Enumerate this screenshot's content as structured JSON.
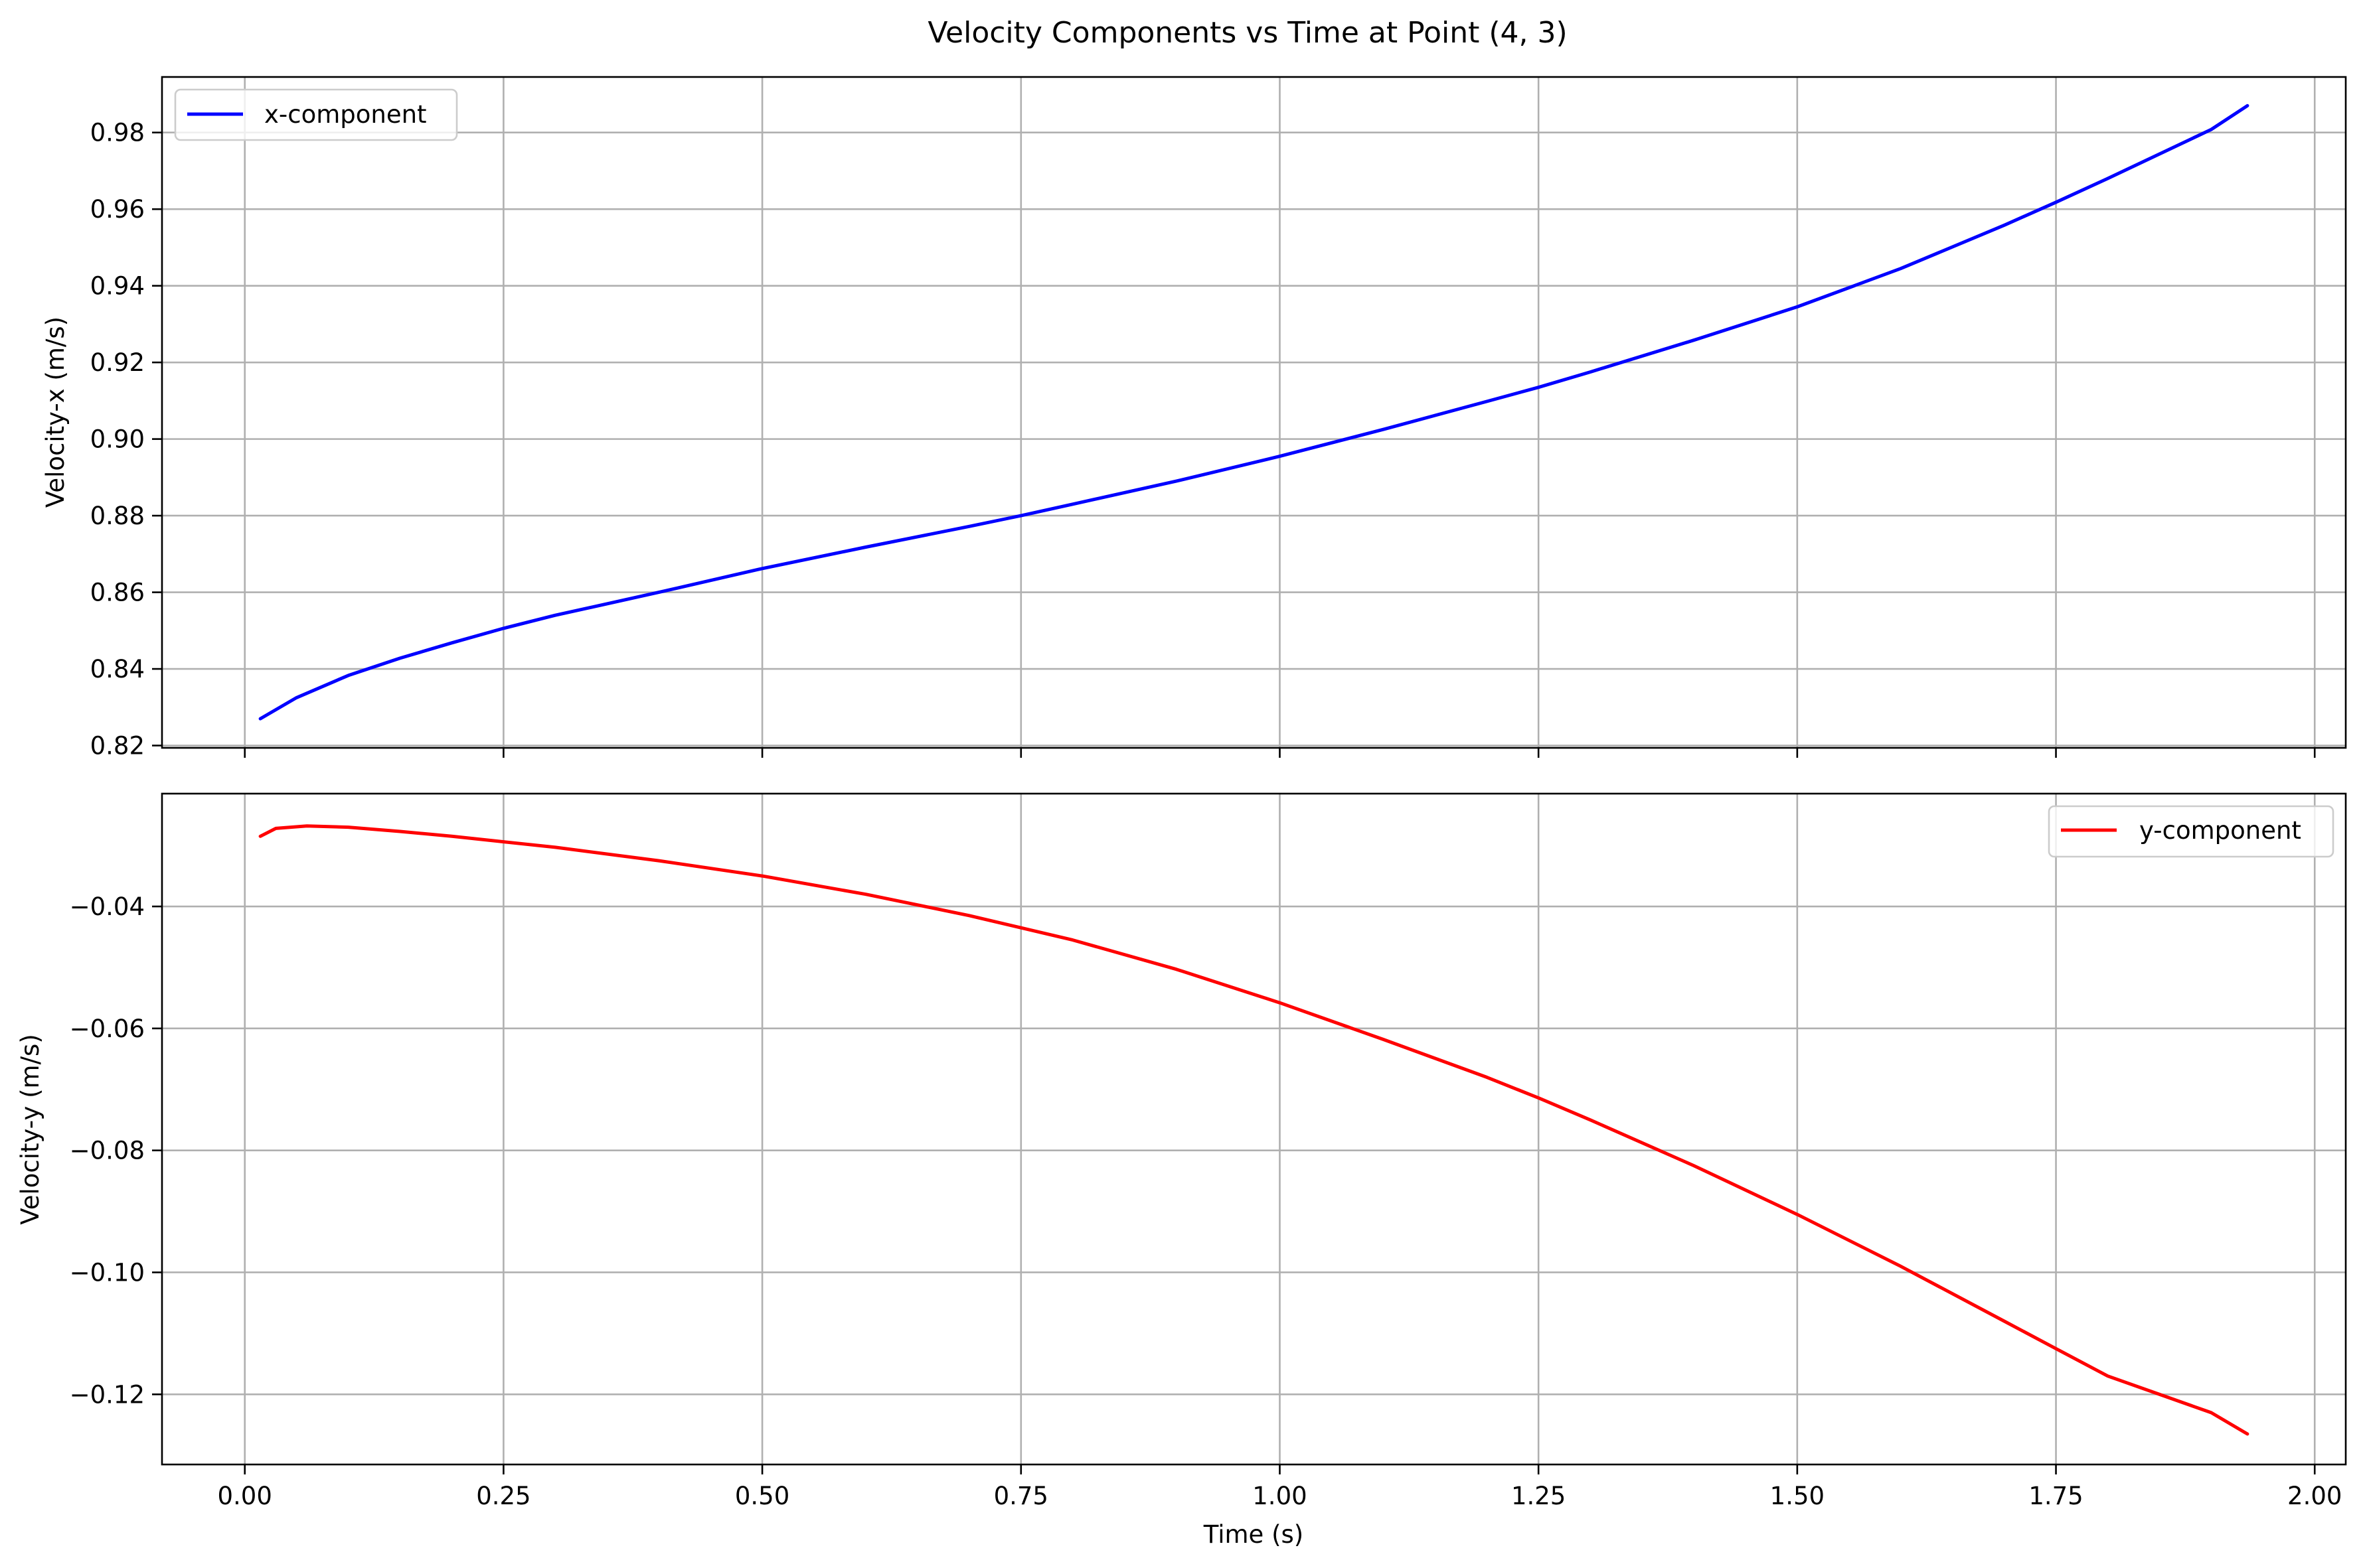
{
  "figure": {
    "title": "Velocity Components vs Time at Point (4, 3)"
  },
  "chart_data": [
    {
      "type": "line",
      "title": "",
      "xlabel": "",
      "ylabel": "Velocity-x (m/s)",
      "xlim": [
        -0.08,
        2.03
      ],
      "ylim": [
        0.8194,
        0.9945
      ],
      "xticks": [
        0.0,
        0.25,
        0.5,
        0.75,
        1.0,
        1.25,
        1.5,
        1.75,
        2.0
      ],
      "xtick_labels": [],
      "yticks": [
        0.82,
        0.84,
        0.86,
        0.88,
        0.9,
        0.92,
        0.94,
        0.96,
        0.98
      ],
      "ytick_labels": [
        "0.82",
        "0.84",
        "0.86",
        "0.88",
        "0.90",
        "0.92",
        "0.94",
        "0.96",
        "0.98"
      ],
      "grid": true,
      "legend": "upper-left",
      "series": [
        {
          "name": "x-component",
          "color": "#0000ff",
          "x": [
            0.015,
            0.05,
            0.1,
            0.15,
            0.2,
            0.25,
            0.3,
            0.4,
            0.5,
            0.6,
            0.7,
            0.75,
            0.8,
            0.9,
            1.0,
            1.1,
            1.2,
            1.25,
            1.3,
            1.4,
            1.5,
            1.6,
            1.7,
            1.75,
            1.8,
            1.9,
            1.935
          ],
          "y": [
            0.827,
            0.8325,
            0.8383,
            0.8428,
            0.8468,
            0.8506,
            0.854,
            0.86,
            0.8662,
            0.8718,
            0.8772,
            0.88,
            0.883,
            0.889,
            0.8955,
            0.9025,
            0.9098,
            0.9135,
            0.9175,
            0.9258,
            0.9345,
            0.9445,
            0.9558,
            0.9618,
            0.968,
            0.9808,
            0.987
          ]
        }
      ]
    },
    {
      "type": "line",
      "title": "",
      "xlabel": "Time (s)",
      "ylabel": "Velocity-y (m/s)",
      "xlim": [
        -0.08,
        2.03
      ],
      "ylim": [
        -0.1315,
        -0.0215
      ],
      "xticks": [
        0.0,
        0.25,
        0.5,
        0.75,
        1.0,
        1.25,
        1.5,
        1.75,
        2.0
      ],
      "xtick_labels": [
        "0.00",
        "0.25",
        "0.50",
        "0.75",
        "1.00",
        "1.25",
        "1.50",
        "1.75",
        "2.00"
      ],
      "yticks": [
        -0.12,
        -0.1,
        -0.08,
        -0.06,
        -0.04
      ],
      "ytick_labels": [
        "−0.12",
        "−0.10",
        "−0.08",
        "−0.06",
        "−0.04"
      ],
      "grid": true,
      "legend": "upper-right",
      "series": [
        {
          "name": "y-component",
          "color": "#ff0000",
          "x": [
            0.015,
            0.03,
            0.06,
            0.1,
            0.15,
            0.2,
            0.25,
            0.3,
            0.4,
            0.5,
            0.6,
            0.7,
            0.75,
            0.8,
            0.9,
            1.0,
            1.1,
            1.2,
            1.25,
            1.3,
            1.4,
            1.5,
            1.6,
            1.7,
            1.75,
            1.8,
            1.9,
            1.935
          ],
          "y": [
            -0.0285,
            -0.0272,
            -0.0268,
            -0.027,
            -0.0277,
            -0.0285,
            -0.0294,
            -0.0303,
            -0.0325,
            -0.035,
            -0.038,
            -0.0415,
            -0.0435,
            -0.0455,
            -0.0503,
            -0.0558,
            -0.0618,
            -0.068,
            -0.0714,
            -0.075,
            -0.0825,
            -0.0905,
            -0.099,
            -0.108,
            -0.1125,
            -0.117,
            -0.123,
            -0.1265
          ]
        }
      ]
    }
  ]
}
